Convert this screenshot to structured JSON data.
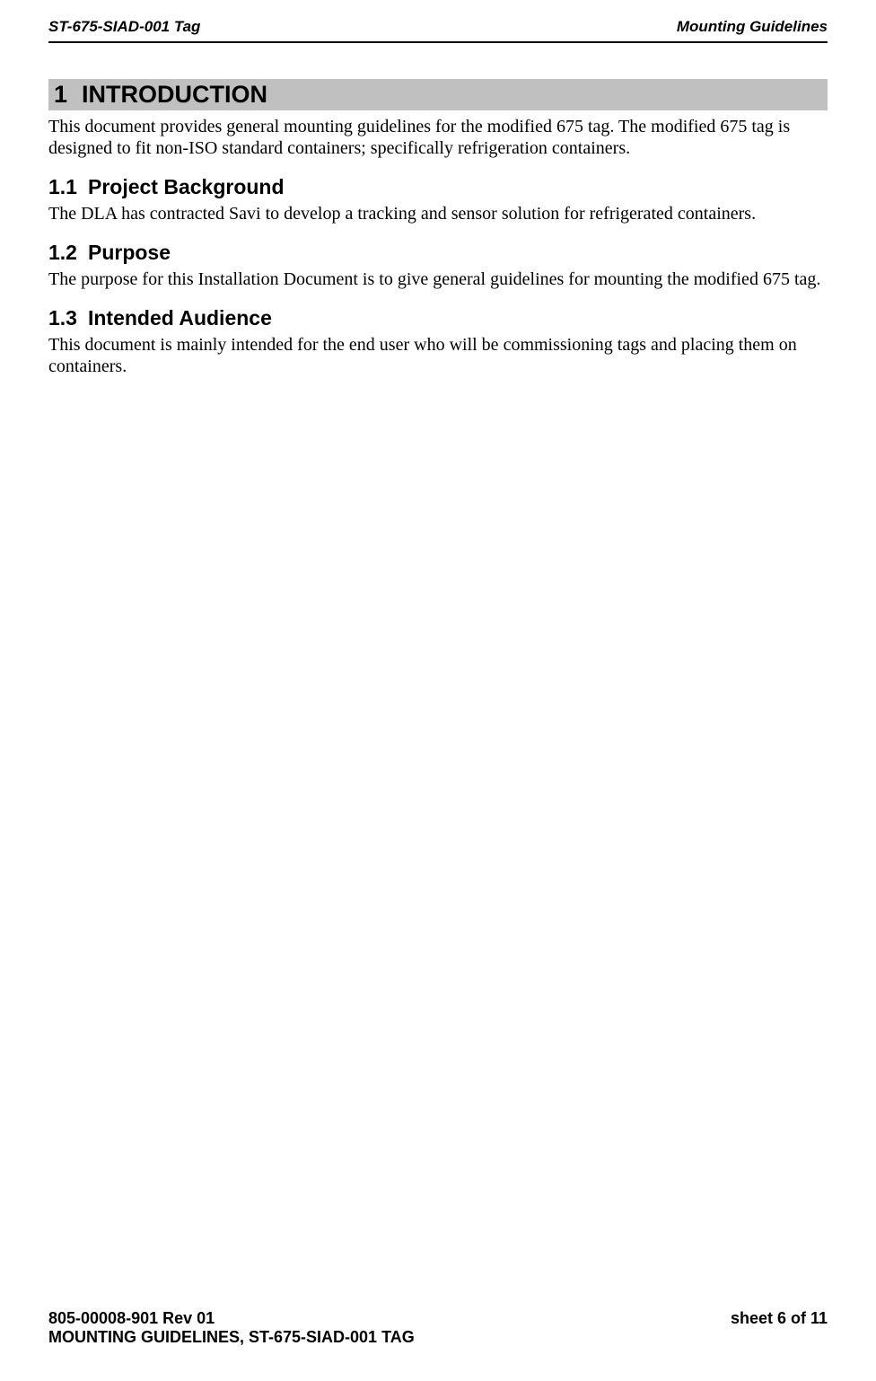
{
  "header": {
    "left": "ST-675-SIAD-001 Tag",
    "right": "Mounting Guidelines"
  },
  "sections": {
    "s1": {
      "num": "1",
      "title": "INTRODUCTION",
      "body": "This document provides general mounting guidelines for the modified 675 tag.  The modified 675 tag is designed to fit non-ISO standard containers; specifically refrigeration containers."
    },
    "s1_1": {
      "num": "1.1",
      "title": "Project Background",
      "body": "The DLA has contracted Savi to develop a tracking and sensor solution for refrigerated containers."
    },
    "s1_2": {
      "num": "1.2",
      "title": "Purpose",
      "body": "The purpose for this Installation Document is to give general guidelines for mounting the modified 675 tag."
    },
    "s1_3": {
      "num": "1.3",
      "title": "Intended Audience",
      "body": "This document is mainly intended for the end user who will be commissioning tags and placing them on containers."
    }
  },
  "footer": {
    "doc_rev": "805-00008-901 Rev 01",
    "sheet": "sheet 6 of 11",
    "title": "MOUNTING GUIDELINES, ST-675-SIAD-001 TAG"
  }
}
